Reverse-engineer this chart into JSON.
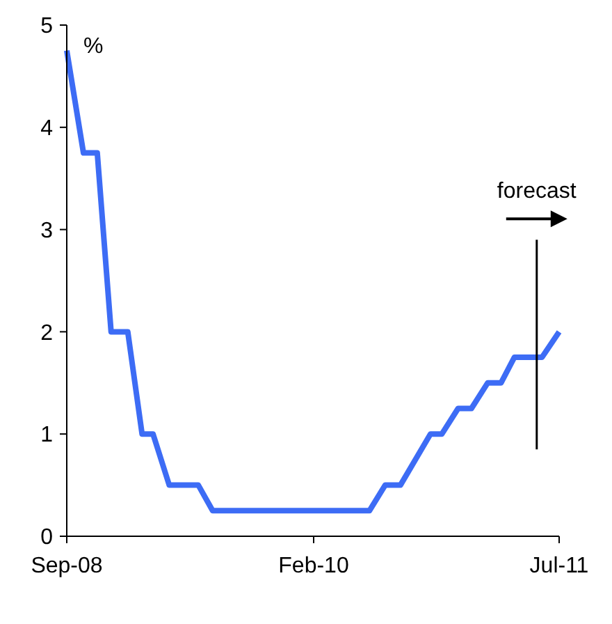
{
  "chart_data": {
    "type": "line",
    "ylabel": "%",
    "x": [
      "2008-09-01",
      "2008-10-06",
      "2008-11-04",
      "2008-12-03",
      "2009-01-07",
      "2009-02-06",
      "2009-03-01",
      "2009-04-04",
      "2009-06-04",
      "2009-07-04",
      "2010-05-29",
      "2010-07-01",
      "2010-08-02",
      "2010-10-04",
      "2010-10-28",
      "2010-12-01",
      "2010-12-29",
      "2011-02-01",
      "2011-03-01",
      "2011-03-29",
      "2011-05-26",
      "2011-07-01"
    ],
    "series": [
      {
        "color": "#3d6cf5",
        "values": [
          4.75,
          3.75,
          3.75,
          2,
          2,
          1,
          1,
          0.5,
          0.5,
          0.25,
          0.25,
          0.5,
          0.5,
          1,
          1,
          1.25,
          1.25,
          1.5,
          1.5,
          1.75,
          1.75,
          2
        ]
      }
    ],
    "xlim": [
      "2008-09",
      "2011-07"
    ],
    "xticks": [
      {
        "value": "2008-09",
        "label": "Sep-08"
      },
      {
        "value": "2010-02",
        "label": "Feb-10"
      },
      {
        "value": "2011-07",
        "label": "Jul-11"
      }
    ],
    "ylim": [
      0,
      5
    ],
    "yticks": [
      0,
      1,
      2,
      3,
      4,
      5
    ],
    "ref_lines": [
      {
        "axis": "x",
        "value": "2011-05-15",
        "label": "forecast",
        "color": "#000000"
      }
    ],
    "grid": false,
    "line_style": "solid"
  }
}
